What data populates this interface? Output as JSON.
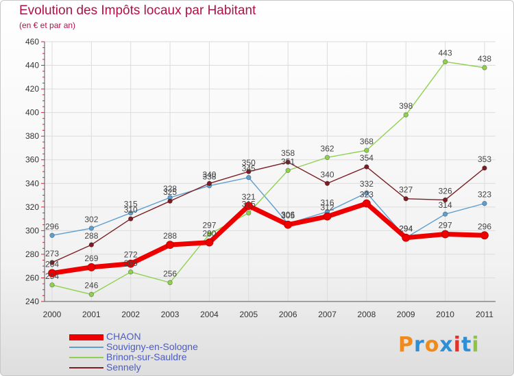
{
  "chart_data": {
    "type": "line",
    "title": "Evolution des Impôts locaux par Habitant",
    "subtitle": "(en € et par an)",
    "xlabel": "",
    "ylabel": "",
    "ylim": [
      240,
      460
    ],
    "yticks": [
      240,
      260,
      280,
      300,
      320,
      340,
      360,
      380,
      400,
      420,
      440,
      460
    ],
    "categories": [
      "2000",
      "2001",
      "2002",
      "2003",
      "2004",
      "2005",
      "2006",
      "2007",
      "2008",
      "2009",
      "2010",
      "2011"
    ],
    "grid": true,
    "legend_position": "bottom-left",
    "series": [
      {
        "name": "CHAON",
        "color": "#ee0000",
        "values": [
          264,
          269,
          272,
          288,
          290,
          321,
          305,
          312,
          323,
          294,
          297,
          296
        ]
      },
      {
        "name": "Souvigny-en-Sologne",
        "color": "#5f9fd0",
        "values": [
          296,
          302,
          315,
          328,
          338,
          345,
          306,
          316,
          332,
          294,
          314,
          323
        ]
      },
      {
        "name": "Brinon-sur-Sauldre",
        "color": "#8fd14f",
        "values": [
          254,
          246,
          265,
          256,
          297,
          315,
          351,
          362,
          368,
          398,
          443,
          438
        ]
      },
      {
        "name": "Sennely",
        "color": "#7b1e24",
        "values": [
          273,
          288,
          310,
          325,
          340,
          350,
          358,
          340,
          354,
          327,
          326,
          353
        ]
      }
    ]
  },
  "logo": {
    "text": "Proxiti",
    "letter_colors": [
      "#f08a1c",
      "#2f8fd6",
      "#f08a1c",
      "#2f8fd6",
      "#e0322a",
      "#2f8fd6",
      "#8cc63f"
    ]
  }
}
